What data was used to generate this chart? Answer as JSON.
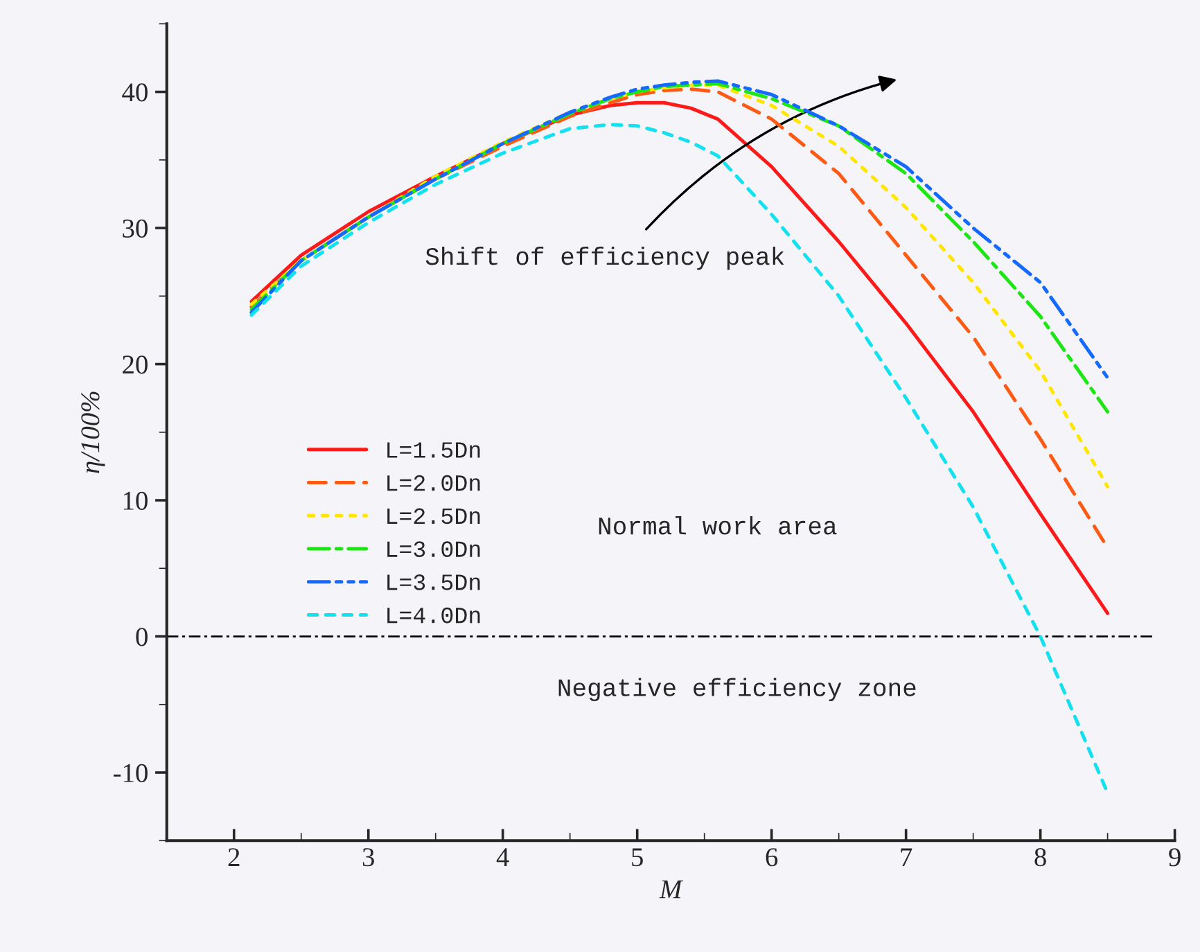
{
  "chart_data": {
    "type": "line",
    "xlabel": "M",
    "ylabel": "η/100%",
    "x": [
      2.13,
      2.5,
      3,
      3.5,
      4,
      4.5,
      4.8,
      5,
      5.2,
      5.4,
      5.6,
      6,
      6.5,
      7,
      7.5,
      8,
      8.5
    ],
    "series": [
      {
        "name": "L=1.5Dn",
        "color": "#ff1a1a",
        "line_style": "solid",
        "values": [
          24.6,
          28,
          31.2,
          33.8,
          36.2,
          38.3,
          39,
          39.2,
          39.2,
          38.8,
          38,
          34.5,
          29,
          23,
          16.5,
          9,
          1.7
        ]
      },
      {
        "name": "L=2.0Dn",
        "color": "#ff5a14",
        "line_style": "dashed",
        "values": [
          24.2,
          27.6,
          30.8,
          33.6,
          36,
          38.2,
          39.2,
          39.8,
          40.1,
          40.2,
          40,
          38,
          34,
          28,
          22,
          14.5,
          6.5
        ]
      },
      {
        "name": "L=2.5Dn",
        "color": "#ffe600",
        "line_style": "dotted",
        "values": [
          24.4,
          27.6,
          30.8,
          33.8,
          36.3,
          38.5,
          39.5,
          40,
          40.3,
          40.5,
          40.5,
          39,
          36,
          31.5,
          26,
          19.5,
          11
        ]
      },
      {
        "name": "L=3.0Dn",
        "color": "#1ee614",
        "line_style": "dashdot",
        "values": [
          24.0,
          27.6,
          30.8,
          33.6,
          36.2,
          38.4,
          39.5,
          40,
          40.4,
          40.5,
          40.6,
          39.5,
          37.5,
          34,
          29,
          23.5,
          16.5
        ]
      },
      {
        "name": "L=3.5Dn",
        "color": "#1469ff",
        "line_style": "dashdotdot",
        "values": [
          23.8,
          27.6,
          30.8,
          33.6,
          36.2,
          38.5,
          39.6,
          40.2,
          40.5,
          40.7,
          40.8,
          39.8,
          37.5,
          34.5,
          30,
          26,
          19
        ]
      },
      {
        "name": "L=4.0Dn",
        "color": "#14e1f0",
        "line_style": "shortdash",
        "values": [
          23.6,
          27.2,
          30.4,
          33.2,
          35.5,
          37.3,
          37.6,
          37.5,
          37,
          36.3,
          35.3,
          31,
          25,
          17.5,
          9.5,
          0,
          -11.5
        ]
      }
    ],
    "xlim": [
      1.5,
      9
    ],
    "xticks": [
      2,
      3,
      4,
      5,
      6,
      7,
      8,
      9
    ],
    "ylim": [
      -15,
      45
    ],
    "yticks": [
      -10,
      0,
      10,
      20,
      30,
      40
    ],
    "ref_lines": [
      {
        "axis": "y",
        "value": 0,
        "color": "#000000",
        "line_style": "dashdot"
      }
    ],
    "annotations": [
      "Shift of efficiency peak",
      "Normal work area",
      "Negative efficiency zone"
    ],
    "legend": "center left",
    "grid": false,
    "marker": "none"
  }
}
